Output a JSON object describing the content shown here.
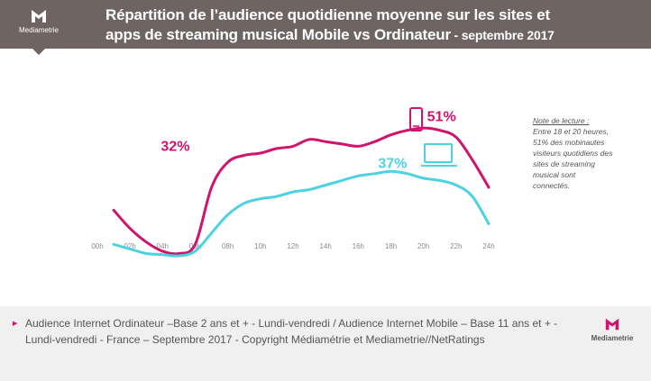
{
  "header": {
    "logo_text": "Mediametrie",
    "title_line1": "Répartition de l’audience quotidienne moyenne sur les sites et",
    "title_line2": "apps de streaming musical  Mobile vs Ordinateur",
    "title_suffix": " - septembre 2017"
  },
  "note": {
    "heading": "Note de lecture :",
    "body": "Entre 18 et 20 heures, 51% des mobinautes visiteurs quotidiens des sites de streaming musical sont connectés."
  },
  "footer": {
    "text": "Audience Internet Ordinateur –Base 2 ans et + - Lundi-vendredi  / Audience Internet Mobile – Base 11 ans et + - Lundi-vendredi  - France – Septembre 2017 - Copyright Médiamétrie  et Mediametrie//NetRatings",
    "logo_text": "Mediametrie"
  },
  "colors": {
    "mobile": "#d0136d",
    "ordinateur": "#4dd2e4",
    "header_bg": "#6e6462"
  },
  "icons": [
    "mobile-phone-icon",
    "laptop-icon"
  ],
  "chart_data": {
    "type": "line",
    "x": [
      1,
      2,
      3,
      4,
      5,
      6,
      7,
      8,
      9,
      10,
      11,
      12,
      13,
      14,
      15,
      16,
      17,
      18,
      19,
      20,
      21,
      22,
      23,
      24
    ],
    "x_tick_labels": [
      "00h",
      "02h",
      "04h",
      "06h",
      "08h",
      "10h",
      "12h",
      "14h",
      "16h",
      "18h",
      "20h",
      "22h",
      "24h"
    ],
    "series": [
      {
        "id": "mobile",
        "values": [
          20,
          12,
          6,
          2,
          1,
          5,
          30,
          41,
          44,
          45,
          47,
          48,
          51,
          50,
          49,
          48,
          50,
          53,
          55,
          56,
          55,
          52,
          42,
          30
        ],
        "labels": [
          "32%",
          "51%"
        ]
      },
      {
        "id": "ordinateur",
        "values": [
          5,
          3,
          1,
          0.5,
          0,
          2,
          10,
          18,
          23,
          25,
          26,
          28,
          29,
          31,
          33,
          35,
          36,
          37,
          36,
          34,
          33,
          31,
          26,
          14
        ],
        "labels": [
          "37%"
        ]
      }
    ],
    "ylim": [
      0,
      60
    ],
    "grid": false,
    "legend": "icons"
  }
}
